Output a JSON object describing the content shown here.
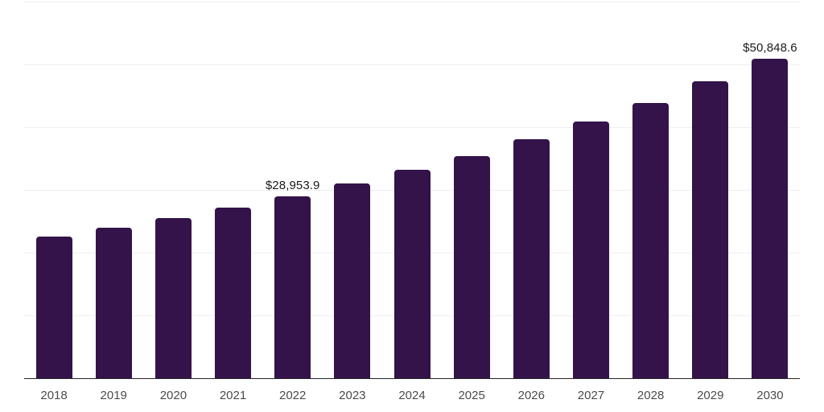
{
  "chart_data": {
    "type": "bar",
    "title": "",
    "xlabel": "",
    "ylabel": "",
    "categories": [
      "2018",
      "2019",
      "2020",
      "2021",
      "2022",
      "2023",
      "2024",
      "2025",
      "2026",
      "2027",
      "2028",
      "2029",
      "2030"
    ],
    "values": [
      22530,
      23940,
      25510,
      27170,
      28953.9,
      31000,
      33230,
      35400,
      38030,
      40840,
      43830,
      47280,
      50848.6
    ],
    "data_labels": {
      "2022": "$28,953.9",
      "2030": "$50,848.6"
    },
    "ylim": [
      0,
      60000
    ],
    "gridline_interval": 10000,
    "grid": "horizontal",
    "legend_position": "none",
    "y_tick_labels_visible": false
  },
  "style": {
    "bar_color": "#331349",
    "gridline_color": "#efefef",
    "axis_line_color": "#262626",
    "tick_label_color": "#4b4b4b",
    "data_label_color": "#1a1a1a",
    "background_color": "#ffffff"
  }
}
